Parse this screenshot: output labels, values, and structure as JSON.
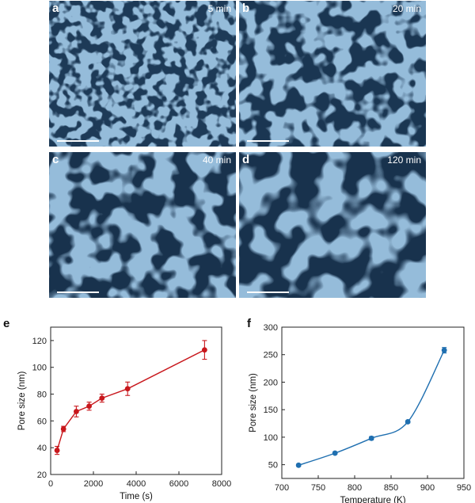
{
  "micrographs": [
    {
      "letter": "a",
      "time": "5 min"
    },
    {
      "letter": "b",
      "time": "20 min"
    },
    {
      "letter": "c",
      "time": "40 min"
    },
    {
      "letter": "d",
      "time": "120 min"
    }
  ],
  "colors": {
    "sem_blue": "#4b7fae",
    "red_series": "#c8171c",
    "blue_series": "#1f6fb0"
  },
  "chart_data": [
    {
      "panel": "e",
      "type": "line",
      "title": "",
      "xlabel": "Time (s)",
      "ylabel": "Pore size (nm)",
      "xlim": [
        0,
        8000
      ],
      "ylim": [
        20,
        130
      ],
      "xticks": [
        0,
        2000,
        4000,
        6000,
        8000
      ],
      "yticks": [
        20,
        40,
        60,
        80,
        100,
        120
      ],
      "series": [
        {
          "x": [
            300,
            600,
            1200,
            1800,
            2400,
            3600,
            7200
          ],
          "y": [
            38,
            54,
            67,
            71,
            77,
            84,
            113
          ],
          "yerr": [
            3,
            2,
            4,
            3,
            3,
            5,
            7
          ]
        }
      ]
    },
    {
      "panel": "f",
      "type": "scatter",
      "title": "",
      "xlabel": "Temperature (K)",
      "ylabel": "Pore size (nm)",
      "xlim": [
        700,
        950
      ],
      "ylim": [
        25,
        300
      ],
      "xticks": [
        700,
        750,
        800,
        850,
        900,
        950
      ],
      "yticks": [
        50,
        100,
        150,
        200,
        250,
        300
      ],
      "series": [
        {
          "x": [
            723,
            773,
            823,
            873,
            923
          ],
          "y": [
            49,
            71,
            98,
            128,
            258
          ],
          "yerr": [
            2,
            2,
            3,
            2,
            5
          ]
        }
      ]
    }
  ]
}
